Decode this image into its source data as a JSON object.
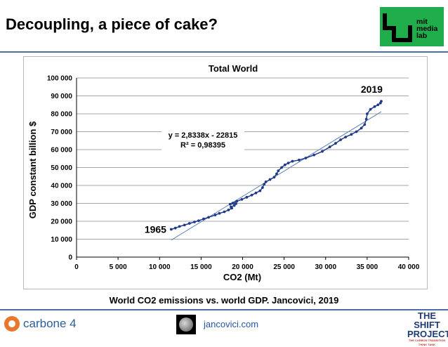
{
  "slide": {
    "title": "Decoupling, a piece of cake?",
    "caption": "World CO2 emissions vs. world GDP. Jancovici, 2019"
  },
  "logos": {
    "mit_media_lab": [
      "mit",
      "media",
      "lab"
    ],
    "carbone4": "carbone 4",
    "shift_project": [
      "THE SHIFT",
      "PROJECT",
      "THE CARBON TRANSITION THINK TANK"
    ]
  },
  "footer": {
    "link": "jancovici.com"
  },
  "colors": {
    "rule": "#4a6fa5",
    "data": "#1f3a8a",
    "trend": "#5b7fb5",
    "mit_green": "#1fae4b",
    "carbone_orange": "#e8782a"
  },
  "chart_data": {
    "type": "scatter",
    "title": "Total World",
    "xlabel": "CO2 (Mt)",
    "ylabel": "GDP constant billion $",
    "xlim": [
      0,
      40000
    ],
    "ylim": [
      0,
      100000
    ],
    "xticks": [
      0,
      5000,
      10000,
      15000,
      20000,
      25000,
      30000,
      35000,
      40000
    ],
    "xtick_labels": [
      "0",
      "5 000",
      "10 000",
      "15 000",
      "20 000",
      "25 000",
      "30 000",
      "35 000",
      "40 000"
    ],
    "yticks": [
      0,
      10000,
      20000,
      30000,
      40000,
      50000,
      60000,
      70000,
      80000,
      90000,
      100000
    ],
    "ytick_labels": [
      "0",
      "10 000",
      "20 000",
      "30 000",
      "40 000",
      "50 000",
      "60 000",
      "70 000",
      "80 000",
      "90 000",
      "100 000"
    ],
    "grid": true,
    "trendline": {
      "equation": "y = 2,8338x - 22815",
      "r2": "R² = 0,98395",
      "slope": 2.8338,
      "intercept": -22815
    },
    "annotations": [
      {
        "text": "1965",
        "x": 11500,
        "y": 15500
      },
      {
        "text": "2019",
        "x": 36700,
        "y": 87000
      }
    ],
    "series": [
      {
        "name": "World",
        "x": [
          11400,
          11900,
          12400,
          13000,
          13600,
          14200,
          14700,
          15300,
          15900,
          16700,
          17200,
          17800,
          18300,
          18700,
          18600,
          19000,
          19200,
          18800,
          18500,
          19300,
          19900,
          20500,
          21100,
          21600,
          22100,
          22400,
          22600,
          22800,
          23300,
          23800,
          24100,
          24300,
          24700,
          25100,
          25500,
          26000,
          26800,
          27600,
          28600,
          29600,
          30500,
          31200,
          31800,
          32400,
          33100,
          33700,
          34300,
          34700,
          34900,
          35000,
          35400,
          35900,
          36300,
          36600,
          36700
        ],
        "y": [
          15500,
          16200,
          17100,
          17900,
          18800,
          19600,
          20300,
          21300,
          22200,
          23500,
          24400,
          25300,
          26300,
          27300,
          28000,
          28800,
          29800,
          30100,
          29500,
          31200,
          32200,
          33400,
          34600,
          35800,
          37000,
          38800,
          40700,
          42000,
          43300,
          44600,
          46500,
          48200,
          50000,
          51500,
          52500,
          53500,
          54200,
          55300,
          57000,
          59000,
          61500,
          63500,
          65500,
          67000,
          68500,
          70000,
          72000,
          74000,
          77000,
          80000,
          82500,
          84000,
          85000,
          86000,
          87000
        ]
      }
    ]
  }
}
